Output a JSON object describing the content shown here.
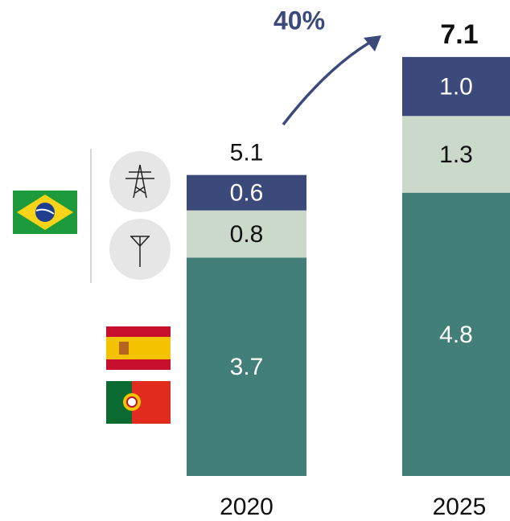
{
  "chart_data": {
    "type": "bar",
    "stacked": true,
    "categories": [
      "2020",
      "2025"
    ],
    "series": [
      {
        "color": "#417f78",
        "values": [
          3.7,
          4.8
        ]
      },
      {
        "color": "#cad9c9",
        "values": [
          0.8,
          1.3
        ]
      },
      {
        "color": "#3b4a7b",
        "values": [
          0.6,
          1.0
        ],
        "value_labels": [
          "0.6",
          "1.0"
        ]
      }
    ],
    "totals": [
      5.1,
      7.1
    ],
    "annotation": {
      "value": 40,
      "label": "40%"
    }
  }
}
